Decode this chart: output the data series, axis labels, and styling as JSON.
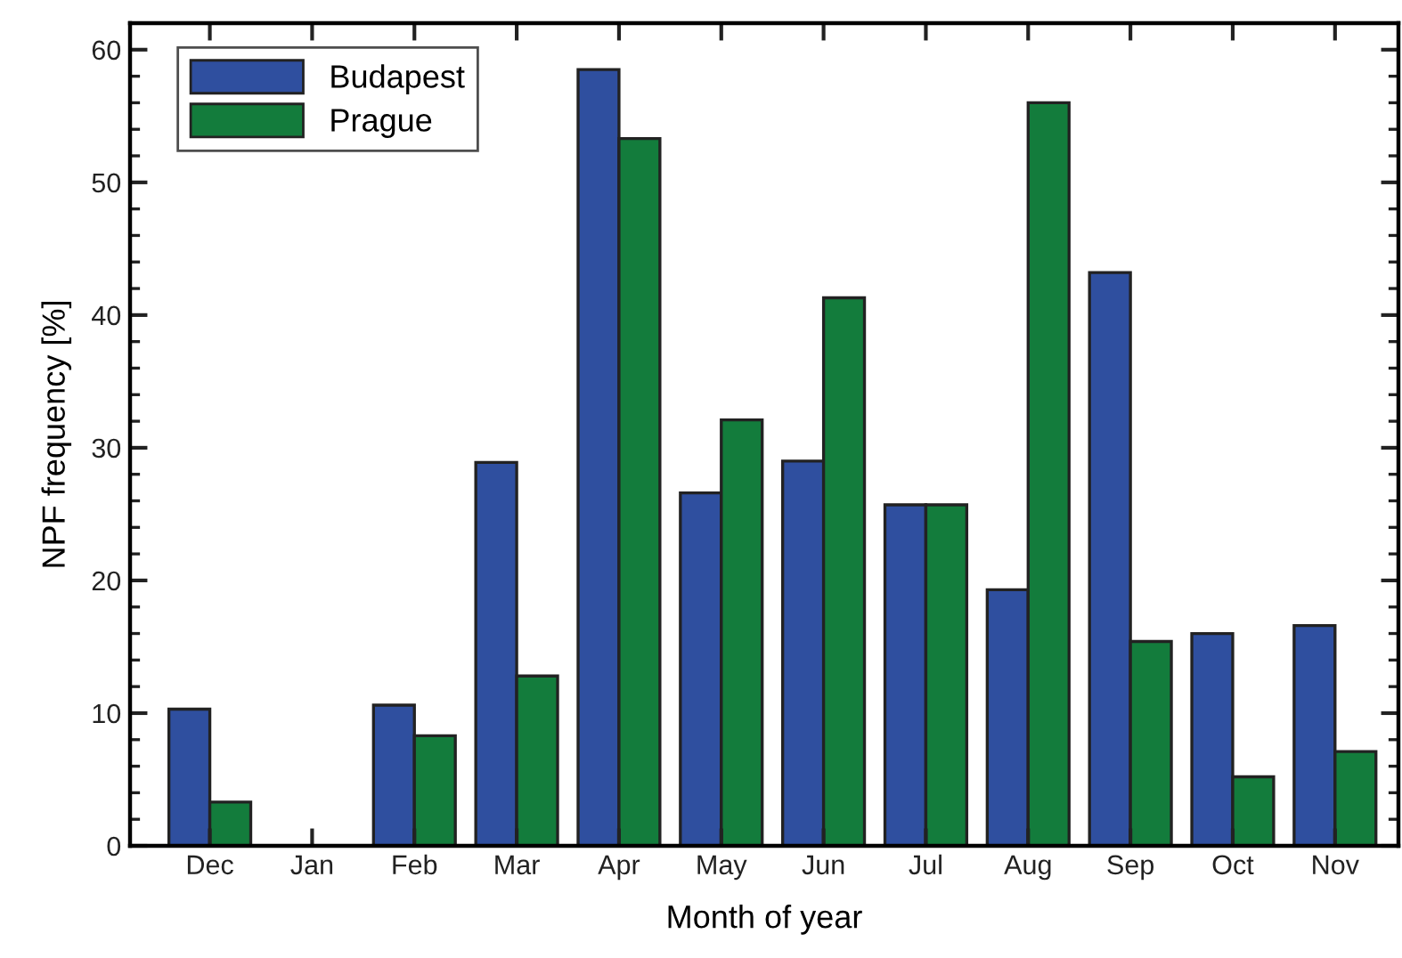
{
  "chart_data": {
    "type": "bar",
    "xlabel": "Month of year",
    "ylabel": "NPF frequency [%]",
    "categories": [
      "Dec",
      "Jan",
      "Feb",
      "Mar",
      "Apr",
      "May",
      "Jun",
      "Jul",
      "Aug",
      "Sep",
      "Oct",
      "Nov"
    ],
    "series": [
      {
        "name": "Budapest",
        "color": "#2f4f9f",
        "values": [
          10.3,
          null,
          10.6,
          28.9,
          58.5,
          26.6,
          29.0,
          25.7,
          19.3,
          43.2,
          16.0,
          16.6
        ]
      },
      {
        "name": "Prague",
        "color": "#137c3c",
        "values": [
          3.3,
          null,
          8.3,
          12.8,
          53.3,
          32.1,
          41.3,
          25.7,
          56.0,
          15.4,
          5.2,
          7.1
        ]
      }
    ],
    "ylim": [
      0,
      62
    ],
    "yticks": [
      0,
      10,
      20,
      30,
      40,
      50,
      60
    ],
    "grid": false,
    "legend": "top left"
  }
}
